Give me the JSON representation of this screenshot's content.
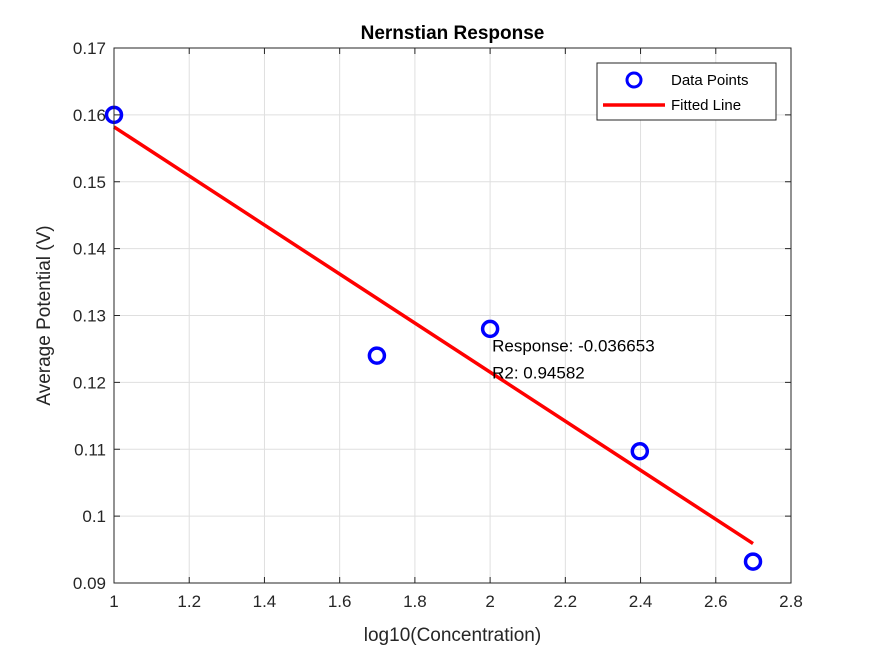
{
  "chart_data": {
    "type": "scatter",
    "title": "Nernstian Response",
    "xlabel": "log10(Concentration)",
    "ylabel": "Average Potential (V)",
    "xlim": [
      1,
      2.8
    ],
    "ylim": [
      0.09,
      0.17
    ],
    "xticks": [
      "1",
      "1.2",
      "1.4",
      "1.6",
      "1.8",
      "2",
      "2.2",
      "2.4",
      "2.6",
      "2.8"
    ],
    "yticks": [
      "0.09",
      "0.1",
      "0.11",
      "0.12",
      "0.13",
      "0.14",
      "0.15",
      "0.16",
      "0.17"
    ],
    "grid": true,
    "legend_position": "top-right",
    "series": [
      {
        "name": "Data Points",
        "kind": "markers",
        "color": "#0000ff",
        "x": [
          1,
          1.699,
          2,
          2.398,
          2.699
        ],
        "y": [
          0.16,
          0.124,
          0.128,
          0.1097,
          0.0932
        ]
      },
      {
        "name": "Fitted Line",
        "kind": "line",
        "color": "#ff0000",
        "x": [
          1,
          2.699
        ],
        "y": [
          0.1582,
          0.0959
        ]
      }
    ],
    "annotations": [
      {
        "text": "Response: -0.036653",
        "x": 2.0,
        "y": 0.1255
      },
      {
        "text": "R2: 0.94582",
        "x": 2.0,
        "y": 0.1215
      }
    ]
  }
}
